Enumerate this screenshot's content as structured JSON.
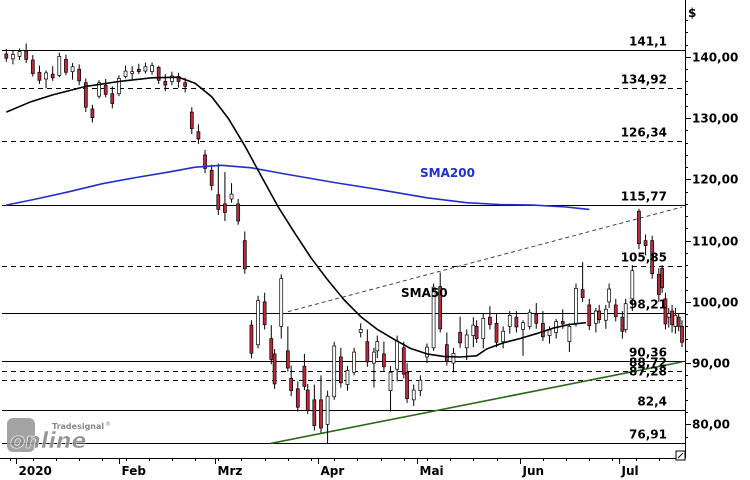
{
  "chart_data": {
    "type": "candlestick",
    "currency_label": "$",
    "ylim": [
      74.5,
      148
    ],
    "y_ticks": [
      "140,00",
      "130,00",
      "120,00",
      "110,00",
      "100,00",
      "90,00",
      "80,00"
    ],
    "y_tick_values": [
      140,
      130,
      120,
      110,
      100,
      90,
      80
    ],
    "x_months": [
      {
        "label": "2020",
        "day": 4
      },
      {
        "label": "Feb",
        "day": 35
      },
      {
        "label": "Mrz",
        "day": 64
      },
      {
        "label": "Apr",
        "day": 95
      },
      {
        "label": "Mai",
        "day": 125
      },
      {
        "label": "Jun",
        "day": 156
      },
      {
        "label": "Jul",
        "day": 186
      }
    ],
    "xlim": [
      0,
      205
    ],
    "levels": [
      {
        "label": "141,1",
        "value": 141.1,
        "style": "solid"
      },
      {
        "label": "134,92",
        "value": 134.92,
        "style": "dashed"
      },
      {
        "label": "126,34",
        "value": 126.34,
        "style": "dashed"
      },
      {
        "label": "115,77",
        "value": 115.77,
        "style": "solid"
      },
      {
        "label": "105,85",
        "value": 105.85,
        "style": "dashed"
      },
      {
        "label": "98,21",
        "value": 98.21,
        "style": "solid"
      },
      {
        "label": "90,36",
        "value": 90.36,
        "style": "solid"
      },
      {
        "label": "88,72",
        "value": 88.72,
        "style": "dashed"
      },
      {
        "label": "87,28",
        "value": 87.28,
        "style": "dashed"
      },
      {
        "label": "82,4",
        "value": 82.4,
        "style": "solid"
      },
      {
        "label": "76,91",
        "value": 76.91,
        "style": "solid"
      }
    ],
    "sma200": {
      "label": "SMA200",
      "color": "#1f2fd0",
      "points": [
        [
          1,
          115.8
        ],
        [
          10,
          116.8
        ],
        [
          20,
          118
        ],
        [
          30,
          119.3
        ],
        [
          40,
          120.3
        ],
        [
          50,
          121.2
        ],
        [
          58,
          122
        ],
        [
          66,
          122.3
        ],
        [
          75,
          121.9
        ],
        [
          85,
          120.9
        ],
        [
          100,
          119.5
        ],
        [
          115,
          118.2
        ],
        [
          128,
          117
        ],
        [
          140,
          116.2
        ],
        [
          150,
          115.9
        ],
        [
          160,
          115.8
        ],
        [
          170,
          115.5
        ],
        [
          177,
          115.1
        ]
      ]
    },
    "sma50": {
      "label": "SMA50",
      "color": "#000000",
      "points": [
        [
          1,
          131
        ],
        [
          8,
          132.6
        ],
        [
          15,
          133.8
        ],
        [
          25,
          135.2
        ],
        [
          35,
          136
        ],
        [
          45,
          136.6
        ],
        [
          53,
          136.7
        ],
        [
          58,
          135.7
        ],
        [
          63,
          133.5
        ],
        [
          68,
          130
        ],
        [
          73,
          125.5
        ],
        [
          78,
          120.5
        ],
        [
          83,
          115.6
        ],
        [
          88,
          111.3
        ],
        [
          93,
          107.2
        ],
        [
          98,
          103.6
        ],
        [
          103,
          100.3
        ],
        [
          108,
          97.6
        ],
        [
          113,
          95.5
        ],
        [
          118,
          93.9
        ],
        [
          123,
          92.4
        ],
        [
          128,
          91.5
        ],
        [
          133,
          91.1
        ],
        [
          138,
          91
        ],
        [
          143,
          91.2
        ],
        [
          146,
          92.3
        ],
        [
          151,
          93.3
        ],
        [
          156,
          94
        ],
        [
          161,
          94.8
        ],
        [
          166,
          95.7
        ],
        [
          171,
          96.3
        ],
        [
          176,
          96.6
        ]
      ]
    },
    "trend_support": {
      "color": "#2a6a1a",
      "from": [
        81,
        76.9
      ],
      "to": [
        205,
        90.2
      ]
    },
    "trend_resistance": {
      "color": "#444444",
      "from": [
        86,
        98.4
      ],
      "to": [
        205,
        115.5
      ]
    },
    "candles": [
      [
        1,
        140.5,
        141.3,
        139.2,
        139.8
      ],
      [
        3,
        139.7,
        141.0,
        138.8,
        140.4
      ],
      [
        5,
        140.1,
        141.4,
        139.5,
        140.9
      ],
      [
        7,
        141.0,
        142.2,
        139.0,
        139.6
      ],
      [
        9,
        139.5,
        140.3,
        136.8,
        137.3
      ],
      [
        11,
        137.5,
        138.6,
        135.6,
        136.2
      ],
      [
        13,
        136.4,
        137.8,
        134.9,
        137.4
      ],
      [
        15,
        137.2,
        138.5,
        136.1,
        136.6
      ],
      [
        17,
        137.0,
        140.7,
        136.7,
        140.1
      ],
      [
        19,
        139.6,
        140.4,
        137.0,
        137.5
      ],
      [
        21,
        137.6,
        139.0,
        136.3,
        138.4
      ],
      [
        23,
        138.0,
        138.8,
        135.4,
        136.1
      ],
      [
        25,
        135.8,
        136.5,
        131.0,
        131.8
      ],
      [
        27,
        131.5,
        132.2,
        129.3,
        130.1
      ],
      [
        29,
        133.6,
        136.2,
        133.2,
        135.8
      ],
      [
        31,
        135.4,
        136.4,
        133.4,
        133.9
      ],
      [
        33,
        134.0,
        135.2,
        131.6,
        132.4
      ],
      [
        35,
        134.0,
        137.0,
        133.6,
        136.5
      ],
      [
        37,
        136.8,
        138.6,
        136.5,
        137.7
      ],
      [
        39,
        137.3,
        138.5,
        136.4,
        137.6
      ],
      [
        41,
        138.0,
        138.9,
        137.2,
        137.6
      ],
      [
        43,
        137.7,
        139.1,
        137.3,
        138.4
      ],
      [
        45,
        137.6,
        139.1,
        137.1,
        138.6
      ],
      [
        47,
        138.3,
        138.6,
        135.6,
        136.2
      ],
      [
        49,
        136.0,
        137.2,
        134.4,
        135.4
      ],
      [
        51,
        136.0,
        137.6,
        135.4,
        136.9
      ],
      [
        53,
        136.8,
        137.4,
        135.0,
        136.0
      ],
      [
        55,
        135.8,
        136.6,
        134.2,
        135.2
      ],
      [
        57,
        131.0,
        131.8,
        127.4,
        128.3
      ],
      [
        59,
        127.8,
        129.0,
        125.8,
        126.6
      ],
      [
        61,
        124.0,
        124.8,
        121.0,
        121.8
      ],
      [
        63,
        121.5,
        122.4,
        118.2,
        119.0
      ],
      [
        65,
        117.5,
        122.6,
        114.2,
        115.1
      ],
      [
        67,
        116.0,
        121.2,
        113.2,
        114.6
      ],
      [
        69,
        116.8,
        119.4,
        116.2,
        117.6
      ],
      [
        71,
        116.0,
        116.8,
        112.6,
        113.2
      ],
      [
        73,
        110.0,
        111.5,
        104.6,
        105.4
      ],
      [
        75,
        96.2,
        97.0,
        90.8,
        91.6
      ],
      [
        77,
        93.0,
        101.0,
        92.4,
        100.2
      ],
      [
        79,
        100.0,
        101.5,
        95.5,
        96.3
      ],
      [
        81,
        94.0,
        96.2,
        89.8,
        90.6
      ],
      [
        82,
        91.5,
        92.3,
        85.8,
        86.6
      ],
      [
        84,
        96.0,
        104.5,
        94.0,
        103.8
      ],
      [
        86,
        92.0,
        96.0,
        88.6,
        89.2
      ],
      [
        87,
        87.5,
        89.6,
        84.6,
        85.5
      ],
      [
        89,
        85.8,
        87.0,
        82.1,
        82.8
      ],
      [
        91,
        89.5,
        91.5,
        85.6,
        86.2
      ],
      [
        92,
        85.6,
        86.6,
        81.7,
        82.3
      ],
      [
        94,
        84.0,
        86.5,
        79.0,
        79.8
      ],
      [
        96,
        84.0,
        88.0,
        78.6,
        79.4
      ],
      [
        98,
        80.0,
        85.5,
        76.9,
        84.6
      ],
      [
        100,
        84.5,
        93.5,
        84.0,
        92.8
      ],
      [
        102,
        91.0,
        92.5,
        86.0,
        86.8
      ],
      [
        104,
        86.5,
        89.5,
        85.5,
        88.8
      ],
      [
        106,
        88.5,
        92.5,
        88.0,
        91.8
      ],
      [
        108,
        95.0,
        96.5,
        94.2,
        95.5
      ],
      [
        110,
        93.5,
        95.5,
        89.4,
        90.2
      ],
      [
        112,
        90.0,
        92.5,
        86.0,
        91.8
      ],
      [
        113,
        92.0,
        94.5,
        90.8,
        93.5
      ],
      [
        115,
        91.5,
        93.5,
        88.6,
        89.4
      ],
      [
        117,
        85.5,
        89.5,
        82.1,
        88.5
      ],
      [
        119,
        89.0,
        94.5,
        87.0,
        93.6
      ],
      [
        121,
        92.5,
        93.5,
        87.5,
        88.2
      ],
      [
        122,
        88.5,
        90.0,
        83.5,
        84.2
      ],
      [
        124,
        84.0,
        86.5,
        83.0,
        85.6
      ],
      [
        126,
        85.5,
        88.0,
        84.6,
        87.2
      ],
      [
        128,
        91.0,
        93.2,
        90.0,
        92.6
      ],
      [
        130,
        92.5,
        103.0,
        92.0,
        102.4
      ],
      [
        132,
        102.5,
        104.8,
        95.0,
        95.6
      ],
      [
        134,
        93.0,
        95.0,
        89.6,
        90.3
      ],
      [
        136,
        90.0,
        92.5,
        88.5,
        91.6
      ],
      [
        138,
        95.0,
        97.6,
        92.5,
        93.3
      ],
      [
        140,
        92.5,
        95.5,
        90.5,
        94.6
      ],
      [
        142,
        94.5,
        97.5,
        92.6,
        96.2
      ],
      [
        143,
        96.0,
        97.0,
        93.3,
        94.0
      ],
      [
        145,
        94.0,
        98.0,
        92.4,
        97.3
      ],
      [
        147,
        97.5,
        99.3,
        95.5,
        96.3
      ],
      [
        149,
        96.5,
        98.0,
        92.6,
        93.4
      ],
      [
        151,
        93.5,
        96.0,
        92.4,
        95.2
      ],
      [
        153,
        96.0,
        98.5,
        94.8,
        97.8
      ],
      [
        155,
        97.5,
        98.5,
        95.0,
        95.9
      ],
      [
        157,
        95.5,
        97.0,
        91.2,
        96.6
      ],
      [
        159,
        96.0,
        98.8,
        95.5,
        98.3
      ],
      [
        161,
        98.0,
        99.8,
        95.6,
        96.5
      ],
      [
        163,
        96.5,
        98.5,
        93.6,
        94.3
      ],
      [
        165,
        94.5,
        96.0,
        93.2,
        95.4
      ],
      [
        167,
        95.0,
        97.2,
        94.0,
        96.8
      ],
      [
        169,
        96.8,
        98.8,
        95.6,
        96.4
      ],
      [
        171,
        93.5,
        96.5,
        91.8,
        96.0
      ],
      [
        173,
        96.5,
        103.0,
        96.0,
        102.2
      ],
      [
        175,
        102.0,
        106.5,
        100.0,
        100.7
      ],
      [
        177,
        99.5,
        100.5,
        95.4,
        96.1
      ],
      [
        179,
        96.5,
        99.0,
        95.0,
        98.5
      ],
      [
        180,
        98.5,
        99.5,
        96.5,
        97.1
      ],
      [
        182,
        97.0,
        99.5,
        95.6,
        98.8
      ],
      [
        183,
        100.0,
        103.0,
        99.0,
        102.1
      ],
      [
        185,
        99.5,
        100.5,
        96.8,
        97.6
      ],
      [
        187,
        97.5,
        98.5,
        94.0,
        95.2
      ],
      [
        188,
        95.5,
        100.5,
        95.0,
        99.7
      ],
      [
        190,
        100.5,
        106.0,
        98.5,
        105.1
      ],
      [
        192,
        114.8,
        115.2,
        108.6,
        109.5
      ],
      [
        194,
        110.0,
        111.0,
        107.6,
        109.2
      ],
      [
        196,
        110.0,
        110.8,
        103.8,
        104.6
      ],
      [
        198,
        104.5,
        105.5,
        100.0,
        101.2
      ],
      [
        199,
        105.5,
        106.0,
        101.5,
        102.3
      ],
      [
        200,
        100.5,
        101.5,
        95.5,
        96.4
      ],
      [
        201,
        97.5,
        99.0,
        95.8,
        98.1
      ],
      [
        202,
        98.5,
        99.5,
        95.0,
        96.3
      ],
      [
        203,
        96.0,
        99.0,
        94.8,
        97.8
      ],
      [
        204,
        97.5,
        98.0,
        95.2,
        96.0
      ],
      [
        205,
        96.0,
        97.0,
        92.6,
        93.4
      ]
    ]
  },
  "annotations": {
    "sma200_label": "SMA200",
    "sma50_label": "SMA50"
  },
  "watermark": {
    "brand": "Tradesignal",
    "reg": "®",
    "text": "online"
  },
  "colors": {
    "up_candle": "#ffffff",
    "down_candle": "#c0283a",
    "axis": "#000000",
    "grid": "#000000"
  }
}
